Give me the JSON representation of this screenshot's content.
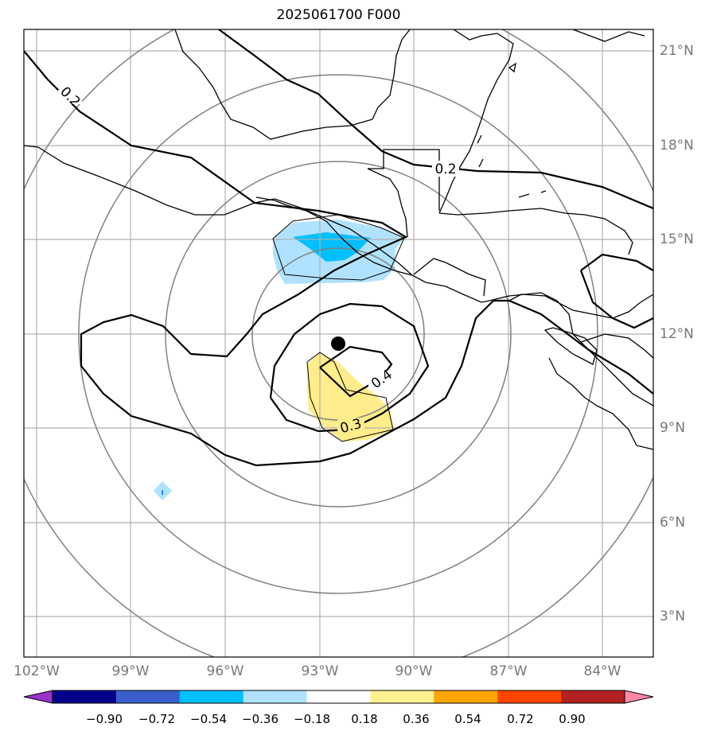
{
  "title": "2025061700 F000",
  "lon_labels": [
    "102°W",
    "99°W",
    "96°W",
    "93°W",
    "90°W",
    "87°W",
    "84°W"
  ],
  "lat_labels": [
    "21°N",
    "18°N",
    "15°N",
    "12°N",
    "9°N",
    "6°N",
    "3°N"
  ],
  "contour_labels": [
    "0.2",
    "0.2",
    "0.3",
    "0.4"
  ],
  "colorbar": {
    "colors": [
      "#9932cc",
      "#00008b",
      "#3a5fcd",
      "#00bfff",
      "#b0e2ff",
      "#ffffff",
      "#fff08f",
      "#ffa500",
      "#ff4500",
      "#b22222",
      "#ff88aa"
    ],
    "ticks": [
      "−0.90",
      "−0.72",
      "−0.54",
      "−0.36",
      "−0.18",
      "0.18",
      "0.36",
      "0.54",
      "0.72",
      "0.90"
    ]
  },
  "marker": "center-dot"
}
